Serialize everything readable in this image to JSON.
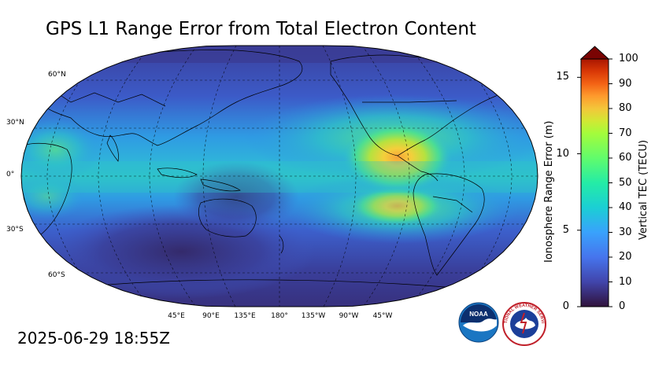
{
  "title": "GPS L1 Range Error from Total Electron Content",
  "timestamp": "2025-06-29 18:55Z",
  "map": {
    "projection": "Robinson",
    "central_longitude": -160,
    "lat_labels": [
      "60°N",
      "30°N",
      "0°",
      "30°S",
      "60°S"
    ],
    "lon_labels": [
      "45°E",
      "90°E",
      "135°E",
      "180°",
      "135°W",
      "90°W",
      "45°W"
    ],
    "field_description_colors": {
      "ocean_low": "#3a3a96",
      "mid": "#2fa6e0",
      "high": "#f9d33c",
      "peak": "#f7a33a"
    }
  },
  "colorbar": {
    "left_axis_label": "Ionosphere Range Error (m)",
    "right_axis_label": "Vertical TEC (TECU)",
    "left_ticks": [
      "0",
      "5",
      "10",
      "15"
    ],
    "left_tick_values": [
      0,
      5,
      10,
      15
    ],
    "left_max": 16.2,
    "right_ticks": [
      "0",
      "10",
      "20",
      "30",
      "40",
      "50",
      "60",
      "70",
      "80",
      "90",
      "100"
    ],
    "right_tick_values": [
      0,
      10,
      20,
      30,
      40,
      50,
      60,
      70,
      80,
      90,
      100
    ],
    "extend": "max",
    "colormap": "turbo"
  },
  "logos": {
    "noaa": "NOAA",
    "nws": "NATIONAL WEATHER SERVICE"
  }
}
